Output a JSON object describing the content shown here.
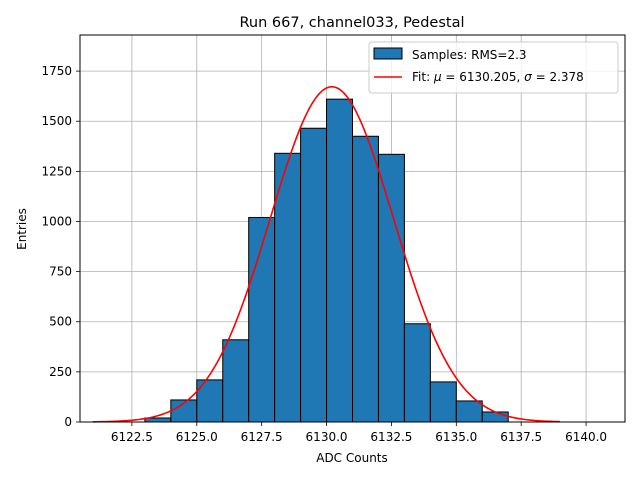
{
  "chart_data": {
    "type": "bar",
    "title": "Run 667, channel033, Pedestal",
    "xlabel": "ADC Counts",
    "ylabel": "Entries",
    "xlim": [
      6120.5,
      6141.5
    ],
    "ylim": [
      0,
      1930
    ],
    "grid": true,
    "legend_position": "top-right",
    "x_ticks": [
      6122.5,
      6125.0,
      6127.5,
      6130.0,
      6132.5,
      6135.0,
      6137.5,
      6140.0
    ],
    "x_tick_labels": [
      "6122.5",
      "6125.0",
      "6127.5",
      "6130.0",
      "6132.5",
      "6135.0",
      "6137.5",
      "6140.0"
    ],
    "y_ticks": [
      0,
      250,
      500,
      750,
      1000,
      1250,
      1500,
      1750
    ],
    "y_tick_labels": [
      "0",
      "250",
      "500",
      "750",
      "1000",
      "1250",
      "1500",
      "1750"
    ],
    "histogram": {
      "name": "Samples: RMS=2.3",
      "color": "#1f77b4",
      "edge_color": "#000000",
      "bin_edges": [
        6123,
        6124,
        6125,
        6126,
        6127,
        6128,
        6129,
        6130,
        6131,
        6132,
        6133,
        6134,
        6135,
        6136,
        6137
      ],
      "counts": [
        20,
        110,
        210,
        410,
        1020,
        1340,
        1465,
        1610,
        1425,
        1335,
        490,
        200,
        105,
        50
      ]
    },
    "fit": {
      "name": "Fit: μ = 6130.205, σ = 2.378",
      "legend_prefix": "Fit: ",
      "mu_symbol": "μ",
      "mu_text": " = 6130.205, ",
      "sigma_symbol": "σ",
      "sigma_text": " = 2.378",
      "color": "#ff0000",
      "mu": 6130.205,
      "sigma": 2.378,
      "amplitude": 1672,
      "x_range": [
        6121,
        6139
      ]
    }
  }
}
